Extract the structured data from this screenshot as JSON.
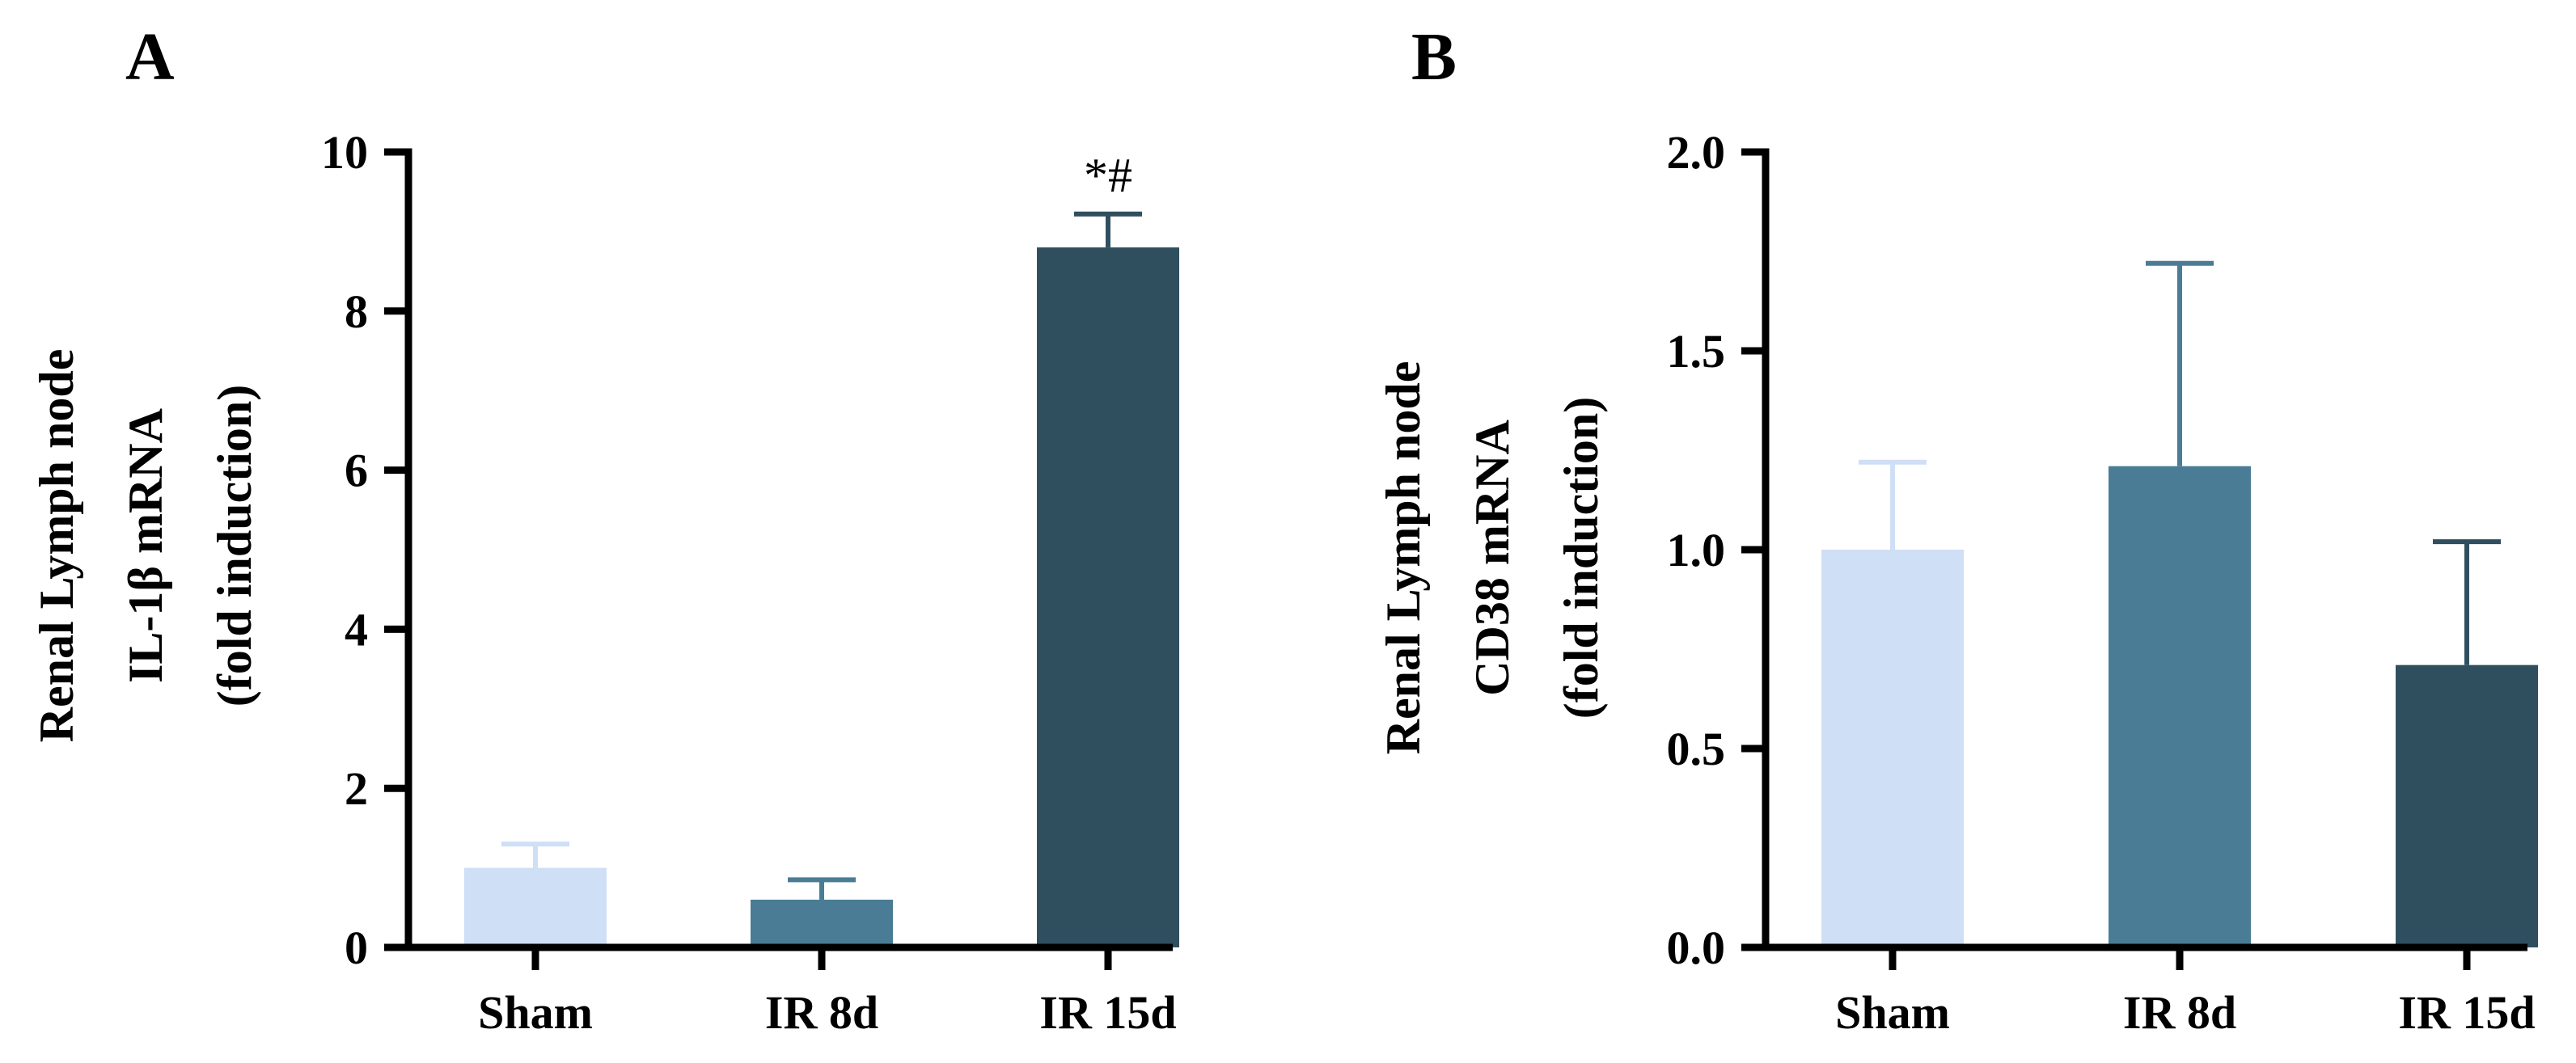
{
  "figure": {
    "panels": [
      {
        "letter": "A",
        "ylabel_lines": [
          "Renal Lymph node",
          "IL-1β mRNA",
          "(fold induction)"
        ]
      },
      {
        "letter": "B",
        "ylabel_lines": [
          "Renal Lymph node",
          "CD38 mRNA",
          "(fold induction)"
        ]
      }
    ]
  },
  "chart_data": [
    {
      "type": "bar",
      "categories": [
        "Sham",
        "IR 8d",
        "IR 15d"
      ],
      "values": [
        1.0,
        0.6,
        8.8
      ],
      "errors": [
        0.3,
        0.25,
        0.42
      ],
      "ylim": [
        0,
        10
      ],
      "yticks": [
        0,
        2,
        4,
        6,
        8,
        10
      ],
      "tick_labels": [
        "0",
        "2",
        "4",
        "6",
        "8",
        "10"
      ],
      "annotations": [
        "",
        "",
        "*#"
      ],
      "bar_colors": [
        "#cfdff5",
        "#4a7c95",
        "#2f4f5f"
      ],
      "ylabel": "Renal Lymph node IL-1β mRNA (fold induction)",
      "grid": false
    },
    {
      "type": "bar",
      "categories": [
        "Sham",
        "IR 8d",
        "IR 15d"
      ],
      "values": [
        1.0,
        1.21,
        0.71
      ],
      "errors": [
        0.22,
        0.51,
        0.31
      ],
      "ylim": [
        0,
        2.0
      ],
      "yticks": [
        0,
        0.5,
        1.0,
        1.5,
        2.0
      ],
      "tick_labels": [
        "0.0",
        "0.5",
        "1.0",
        "1.5",
        "2.0"
      ],
      "annotations": [
        "",
        "",
        ""
      ],
      "bar_colors": [
        "#cfdff5",
        "#4a7c95",
        "#2f4f5f"
      ],
      "ylabel": "Renal Lymph node CD38 mRNA (fold induction)",
      "grid": false
    }
  ]
}
